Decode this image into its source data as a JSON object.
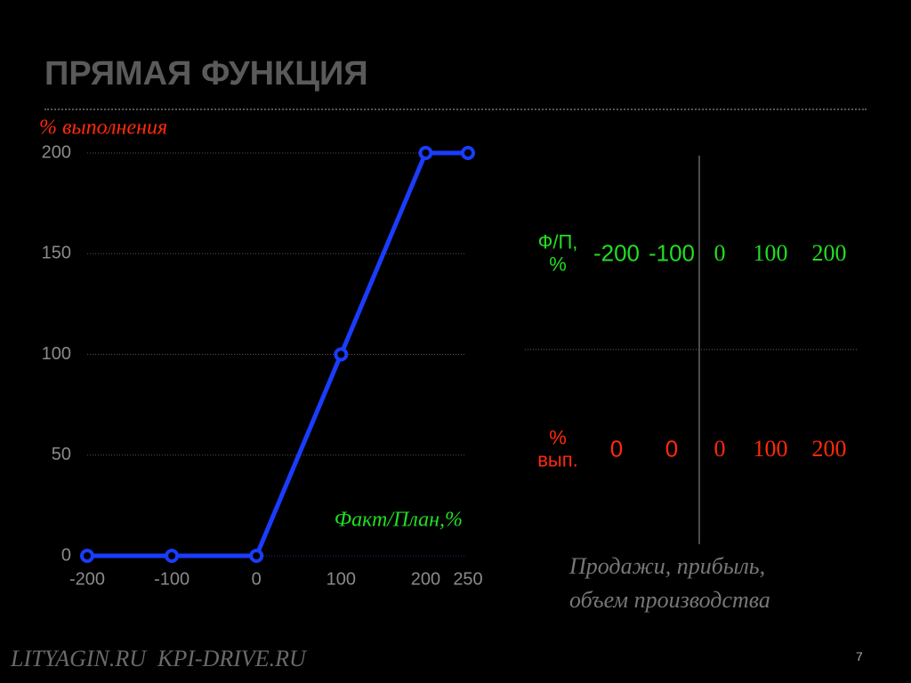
{
  "title": "ПРЯМАЯ ФУНКЦИЯ",
  "chart_data": {
    "type": "line",
    "y_label": "% выполнения",
    "x_label": "Факт/План,%",
    "x": [
      -200,
      -100,
      0,
      100,
      200,
      250
    ],
    "series": [
      {
        "color": "#1a3cff",
        "values": [
          0,
          0,
          0,
          100,
          200,
          200
        ]
      }
    ],
    "xlim": [
      -200,
      250
    ],
    "ylim": [
      0,
      200
    ],
    "xticks": [
      -200,
      -100,
      0,
      100,
      200,
      250
    ],
    "yticks": [
      0,
      50,
      100,
      150,
      200
    ],
    "grid": true
  },
  "table": {
    "rows": [
      [
        "Ф/П, %",
        -200,
        -100,
        0,
        100,
        200
      ],
      [
        "% вып.",
        0,
        0,
        0,
        100,
        200
      ]
    ]
  },
  "caption": [
    "Продажи, прибыль,",
    "объем производства"
  ],
  "footer": "LITYAGIN.RU  KPI-DRIVE.RU",
  "page_number": 7
}
